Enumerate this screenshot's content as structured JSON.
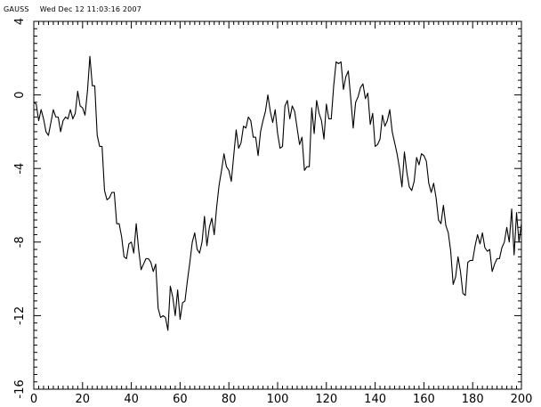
{
  "header": {
    "app": "GAUSS",
    "timestamp": "Wed Dec 12 11:03:16 2007"
  },
  "chart_data": {
    "type": "line",
    "title": "",
    "xlabel": "",
    "ylabel": "",
    "xlim": [
      0,
      200
    ],
    "ylim": [
      -16,
      4
    ],
    "xticks": [
      0,
      20,
      40,
      60,
      80,
      100,
      120,
      140,
      160,
      180,
      200
    ],
    "yticks": [
      -16,
      -12,
      -8,
      -4,
      0,
      4
    ],
    "grid": false,
    "series": [
      {
        "color": "#000000",
        "x": [
          0,
          1,
          2,
          3,
          4,
          5,
          6,
          7,
          8,
          9,
          10,
          11,
          12,
          13,
          14,
          15,
          16,
          17,
          18,
          19,
          20,
          21,
          22,
          23,
          24,
          25,
          26,
          27,
          28,
          29,
          30,
          31,
          32,
          33,
          34,
          35,
          36,
          37,
          38,
          39,
          40,
          41,
          42,
          43,
          44,
          45,
          46,
          47,
          48,
          49,
          50,
          51,
          52,
          53,
          54,
          55,
          56,
          57,
          58,
          59,
          60,
          61,
          62,
          63,
          64,
          65,
          66,
          67,
          68,
          69,
          70,
          71,
          72,
          73,
          74,
          75,
          76,
          77,
          78,
          79,
          80,
          81,
          82,
          83,
          84,
          85,
          86,
          87,
          88,
          89,
          90,
          91,
          92,
          93,
          94,
          95,
          96,
          97,
          98,
          99,
          100,
          101,
          102,
          103,
          104,
          105,
          106,
          107,
          108,
          109,
          110,
          111,
          112,
          113,
          114,
          115,
          116,
          117,
          118,
          119,
          120,
          121,
          122,
          123,
          124,
          125,
          126,
          127,
          128,
          129,
          130,
          131,
          132,
          133,
          134,
          135,
          136,
          137,
          138,
          139,
          140,
          141,
          142,
          143,
          144,
          145,
          146,
          147,
          148,
          149,
          150,
          151,
          152,
          153,
          154,
          155,
          156,
          157,
          158,
          159,
          160,
          161,
          162,
          163,
          164,
          165,
          166,
          167,
          168,
          169,
          170,
          171,
          172,
          173,
          174,
          175,
          176,
          177,
          178,
          179,
          180,
          181,
          182,
          183,
          184,
          185,
          186,
          187,
          188,
          189,
          190,
          191,
          192,
          193,
          194,
          195,
          196,
          197,
          198,
          199,
          200
        ],
        "y": [
          -0.4,
          -0.5,
          -1.4,
          -0.8,
          -1.3,
          -2.0,
          -2.2,
          -1.5,
          -0.8,
          -1.2,
          -1.2,
          -2.0,
          -1.4,
          -1.2,
          -1.3,
          -0.8,
          -1.3,
          -1.0,
          0.2,
          -0.6,
          -0.7,
          -1.1,
          0.2,
          2.1,
          0.5,
          0.5,
          -2.2,
          -2.8,
          -2.8,
          -5.2,
          -5.7,
          -5.6,
          -5.3,
          -5.3,
          -7.0,
          -7.0,
          -7.7,
          -8.8,
          -8.9,
          -8.1,
          -8.0,
          -8.6,
          -7.0,
          -8.4,
          -9.5,
          -9.2,
          -8.9,
          -8.9,
          -9.1,
          -9.6,
          -9.2,
          -11.6,
          -12.1,
          -12.0,
          -12.1,
          -12.8,
          -10.4,
          -11.0,
          -12.0,
          -10.6,
          -12.2,
          -11.3,
          -11.2,
          -10.1,
          -9.1,
          -8.0,
          -7.5,
          -8.4,
          -8.6,
          -8.0,
          -6.6,
          -8.2,
          -7.2,
          -6.7,
          -7.6,
          -6.1,
          -4.9,
          -4.1,
          -3.2,
          -3.9,
          -4.1,
          -4.7,
          -3.3,
          -1.9,
          -2.9,
          -2.6,
          -1.7,
          -1.8,
          -1.2,
          -1.4,
          -2.3,
          -2.3,
          -3.3,
          -2.0,
          -1.4,
          -0.9,
          0.0,
          -0.9,
          -1.5,
          -0.8,
          -2.1,
          -2.9,
          -2.8,
          -0.6,
          -0.3,
          -1.3,
          -0.6,
          -0.9,
          -1.8,
          -2.7,
          -2.3,
          -4.1,
          -3.9,
          -3.9,
          -0.7,
          -2.1,
          -0.3,
          -1.0,
          -1.4,
          -2.4,
          -0.5,
          -1.3,
          -1.3,
          0.5,
          1.8,
          1.7,
          1.8,
          0.3,
          1.0,
          1.3,
          -0.2,
          -1.8,
          -0.4,
          -0.1,
          0.4,
          0.6,
          -0.2,
          0.1,
          -1.6,
          -1.0,
          -2.8,
          -2.7,
          -2.4,
          -1.1,
          -1.7,
          -1.4,
          -0.8,
          -2.0,
          -2.6,
          -3.2,
          -4.0,
          -5.0,
          -3.1,
          -4.2,
          -5.0,
          -5.2,
          -4.7,
          -3.4,
          -3.8,
          -3.2,
          -3.3,
          -3.6,
          -4.8,
          -5.3,
          -4.8,
          -5.6,
          -6.8,
          -7.0,
          -6.0,
          -7.1,
          -7.5,
          -8.5,
          -10.3,
          -9.9,
          -8.8,
          -9.6,
          -10.8,
          -10.9,
          -9.1,
          -9.0,
          -9.0,
          -8.2,
          -7.6,
          -8.1,
          -7.5,
          -8.3,
          -8.5,
          -8.4,
          -9.6,
          -9.2,
          -8.9,
          -8.9,
          -8.3,
          -8.0,
          -7.2,
          -8.0,
          -6.2,
          -8.7,
          -6.4,
          -8.0,
          -7.0
        ]
      }
    ]
  }
}
